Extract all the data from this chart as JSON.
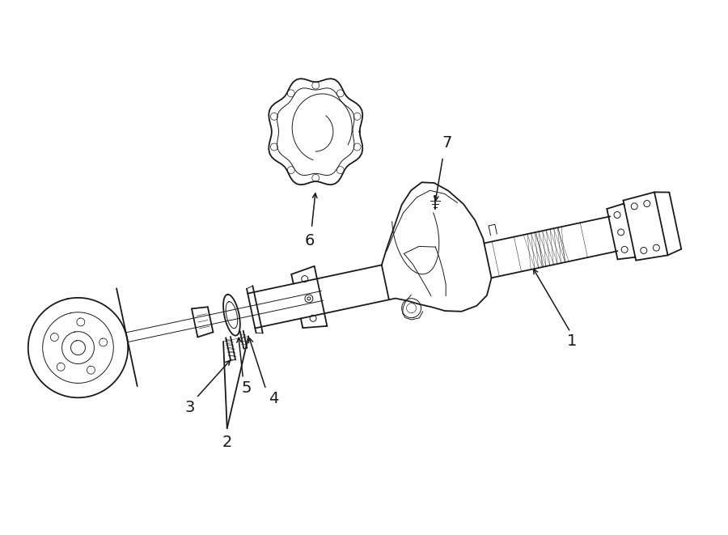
{
  "bg_color": "#ffffff",
  "line_color": "#1a1a1a",
  "lw": 1.3,
  "tlw": 0.7,
  "fig_width": 9.0,
  "fig_height": 6.61,
  "dpi": 100,
  "label_fontsize": 14
}
